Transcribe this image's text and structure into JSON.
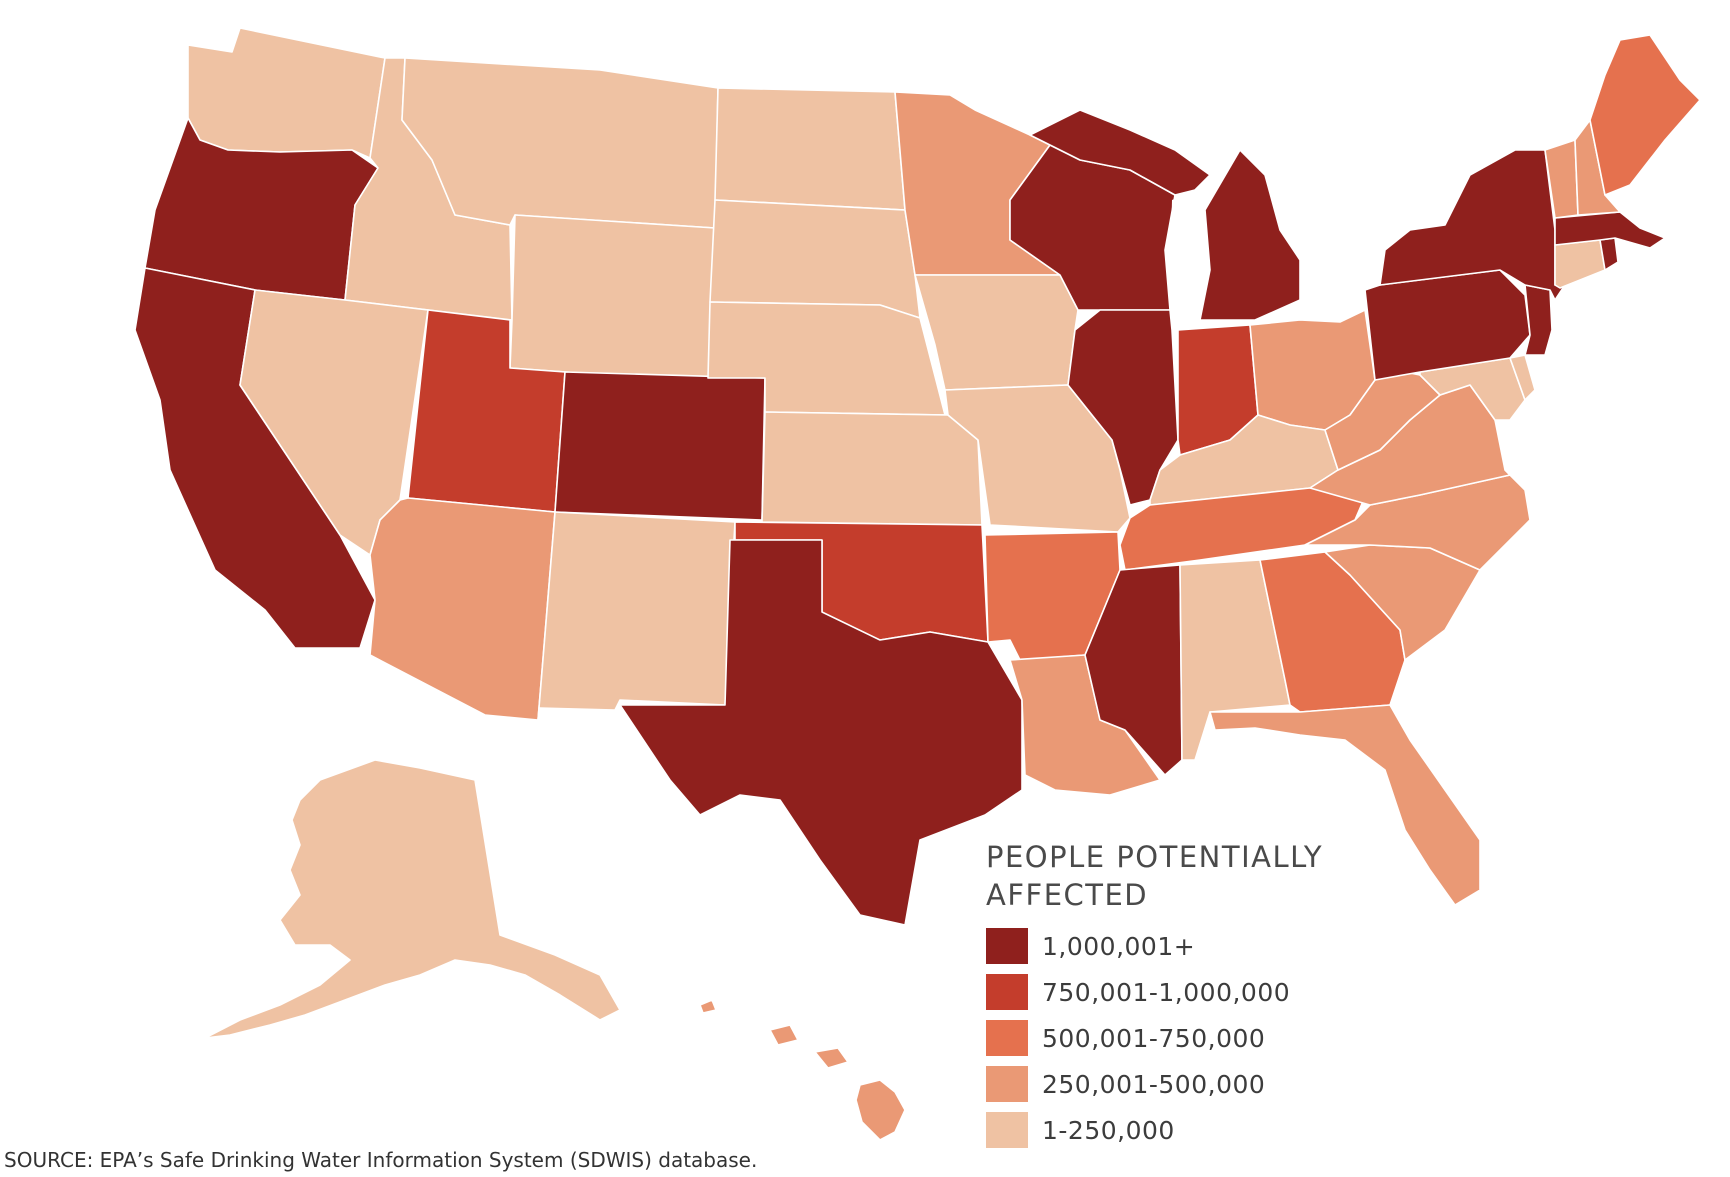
{
  "legend": {
    "title_line1": "PEOPLE POTENTIALLY",
    "title_line2": "AFFECTED",
    "items": [
      {
        "label": "1,000,001+",
        "color": "#8f201d"
      },
      {
        "label": "750,001-1,000,000",
        "color": "#c43d2c"
      },
      {
        "label": "500,001-750,000",
        "color": "#e5714e"
      },
      {
        "label": "250,001-500,000",
        "color": "#ea9975"
      },
      {
        "label": "1-250,000",
        "color": "#efc2a3"
      }
    ]
  },
  "source": "SOURCE: EPA’s Safe Drinking Water Information System (SDWIS) database.",
  "states": {
    "WA": 4,
    "OR": 0,
    "CA": 0,
    "ID": 4,
    "NV": 4,
    "MT": 4,
    "WY": 4,
    "UT": 1,
    "AZ": 3,
    "CO": 0,
    "NM": 4,
    "ND": 4,
    "SD": 4,
    "NE": 4,
    "KS": 4,
    "OK": 1,
    "TX": 0,
    "MN": 3,
    "IA": 4,
    "MO": 4,
    "AR": 2,
    "LA": 3,
    "WI": 0,
    "IL": 0,
    "MI": 0,
    "IN": 1,
    "OH": 3,
    "KY": 4,
    "TN": 2,
    "MS": 0,
    "AL": 4,
    "GA": 2,
    "FL": 3,
    "SC": 3,
    "NC": 3,
    "VA": 3,
    "WV": 3,
    "MD": 4,
    "DE": 4,
    "PA": 0,
    "NJ": 0,
    "NY": 0,
    "CT": 4,
    "RI": 0,
    "MA": 0,
    "VT": 3,
    "NH": 3,
    "ME": 2,
    "AK": 4,
    "HI": 3
  }
}
